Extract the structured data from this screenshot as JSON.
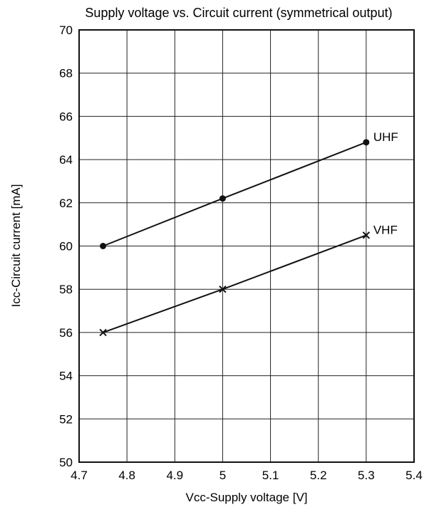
{
  "chart_data": {
    "type": "line",
    "title": "Supply voltage vs. Circuit current (symmetrical output)",
    "xlabel": "Vcc-Supply voltage [V]",
    "ylabel": "Icc-Circuit current [mA]",
    "xlim": [
      4.7,
      5.4
    ],
    "ylim": [
      50,
      70
    ],
    "xticks": [
      4.7,
      4.8,
      4.9,
      5,
      5.1,
      5.2,
      5.3,
      5.4
    ],
    "xtick_labels": [
      "4.7",
      "4.8",
      "4.9",
      "5",
      "5.1",
      "5.2",
      "5.3",
      "5.4"
    ],
    "yticks": [
      50,
      52,
      54,
      56,
      58,
      60,
      62,
      64,
      66,
      68,
      70
    ],
    "ytick_labels": [
      "50",
      "52",
      "54",
      "56",
      "58",
      "60",
      "62",
      "64",
      "66",
      "68",
      "70"
    ],
    "grid": true,
    "series": [
      {
        "name": "UHF",
        "marker": "circle",
        "x": [
          4.75,
          5.0,
          5.3
        ],
        "y": [
          60.0,
          62.2,
          64.8
        ]
      },
      {
        "name": "VHF",
        "marker": "x",
        "x": [
          4.75,
          5.0,
          5.3
        ],
        "y": [
          56.0,
          58.0,
          60.5
        ]
      }
    ]
  }
}
